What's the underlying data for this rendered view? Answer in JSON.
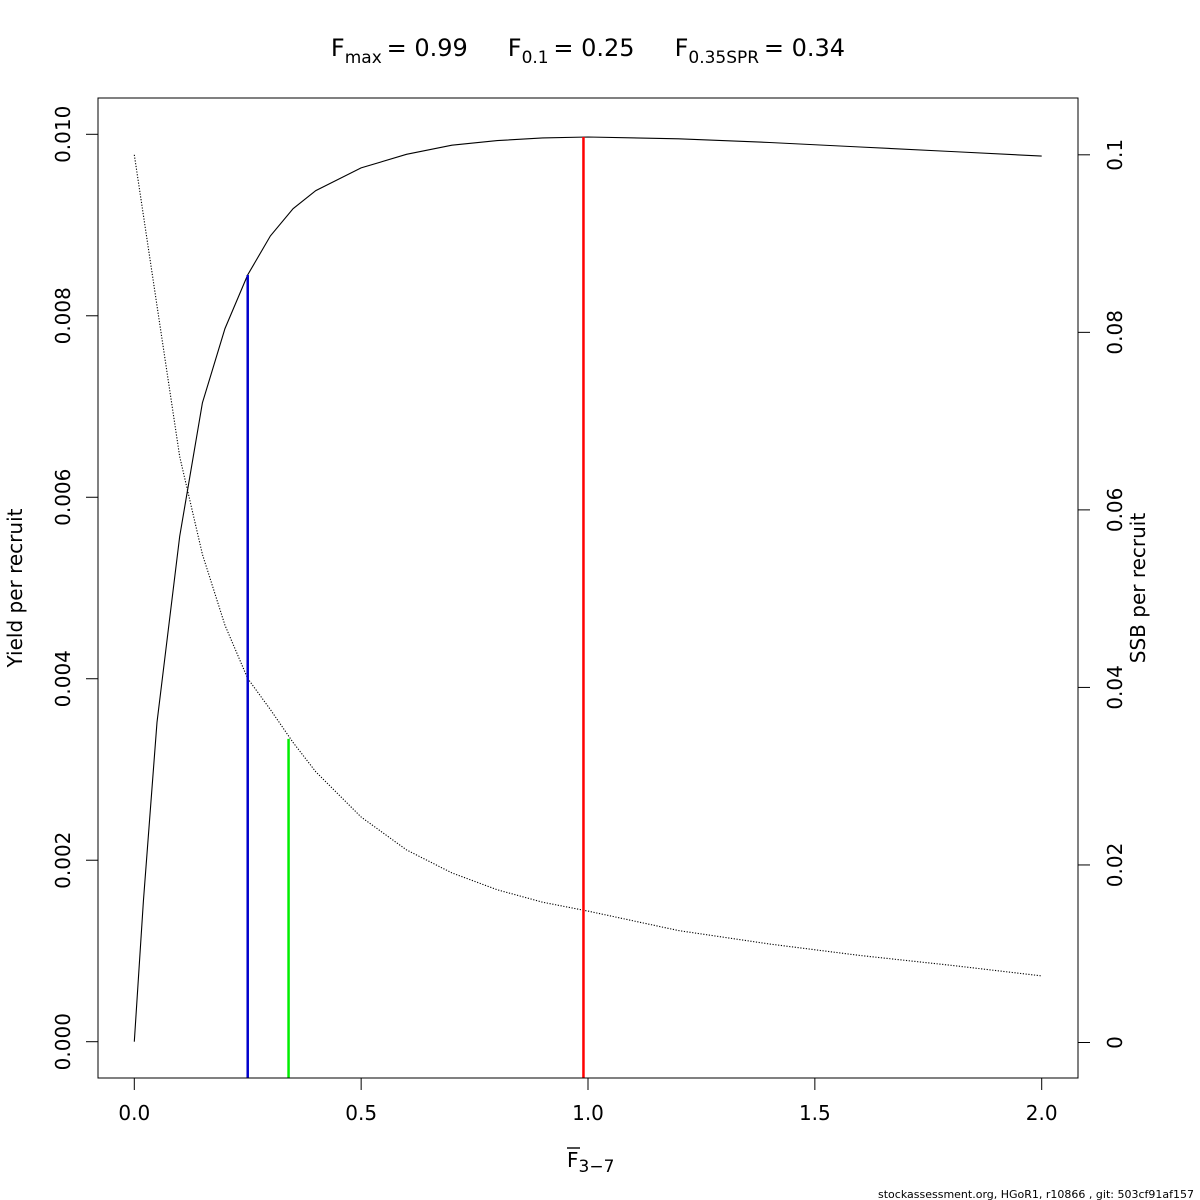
{
  "chart_data": {
    "type": "line",
    "title_refs": [
      {
        "main": "F",
        "sub": "max",
        "value": "= 0.99"
      },
      {
        "main": "F",
        "sub": "0.1",
        "value": "= 0.25"
      },
      {
        "main": "F",
        "sub": "0.35SPR",
        "value": "= 0.34"
      }
    ],
    "xlabel": {
      "main": "F",
      "sub": "3−7",
      "overline": true
    },
    "ylabel_left": "Yield per recruit",
    "ylabel_right": "SSB per recruit",
    "xlim": [
      -0.08,
      2.08
    ],
    "ylim_left": [
      -0.0004,
      0.0104
    ],
    "ylim_right": [
      -0.004,
      0.1064
    ],
    "x_ticks": [
      0,
      0.5,
      1,
      1.5,
      2
    ],
    "x_tick_labels": [
      "0.0",
      "0.5",
      "1.0",
      "1.5",
      "2.0"
    ],
    "y_left_ticks": [
      0,
      0.002,
      0.004,
      0.006,
      0.008,
      0.01
    ],
    "y_left_tick_labels": [
      "0.000",
      "0.002",
      "0.004",
      "0.006",
      "0.008",
      "0.010"
    ],
    "y_right_ticks": [
      0,
      0.02,
      0.04,
      0.06,
      0.08,
      0.1
    ],
    "y_right_tick_labels": [
      "0",
      "0.02",
      "0.04",
      "0.06",
      "0.08",
      "0.1"
    ],
    "series": [
      {
        "axis": "left",
        "style": "solid",
        "color": "#000000",
        "x": [
          0,
          0.02,
          0.05,
          0.1,
          0.15,
          0.2,
          0.25,
          0.3,
          0.35,
          0.4,
          0.5,
          0.6,
          0.7,
          0.8,
          0.9,
          1.0,
          1.2,
          1.4,
          1.6,
          1.8,
          2.0
        ],
        "values": [
          0,
          0.00155,
          0.00352,
          0.00557,
          0.00704,
          0.00786,
          0.00845,
          0.00888,
          0.00918,
          0.00938,
          0.00963,
          0.00978,
          0.00988,
          0.00993,
          0.00996,
          0.00997,
          0.00995,
          0.00991,
          0.00986,
          0.00981,
          0.00976
        ]
      },
      {
        "axis": "right",
        "style": "dotted",
        "color": "#000000",
        "x": [
          0,
          0.05,
          0.1,
          0.15,
          0.2,
          0.25,
          0.3,
          0.35,
          0.4,
          0.5,
          0.6,
          0.7,
          0.8,
          0.9,
          1.0,
          1.2,
          1.4,
          1.6,
          1.8,
          2.0
        ],
        "values": [
          0.1,
          0.083,
          0.066,
          0.055,
          0.047,
          0.041,
          0.0375,
          0.0338,
          0.0305,
          0.0254,
          0.0217,
          0.0191,
          0.0172,
          0.0158,
          0.0148,
          0.0126,
          0.0111,
          0.0098,
          0.0087,
          0.0075
        ]
      }
    ],
    "reference_lines": [
      {
        "x": 0.99,
        "top": 0.00997,
        "axis": "left",
        "color": "#ff0000"
      },
      {
        "x": 0.25,
        "top": 0.00845,
        "axis": "left",
        "color": "#0000cc"
      },
      {
        "x": 0.34,
        "top": 0.0342,
        "axis": "right",
        "color": "#00ee00"
      }
    ],
    "grid": false,
    "footer": "stockassessment.org, HGoR1, r10866 , git: 503cf91af157"
  }
}
